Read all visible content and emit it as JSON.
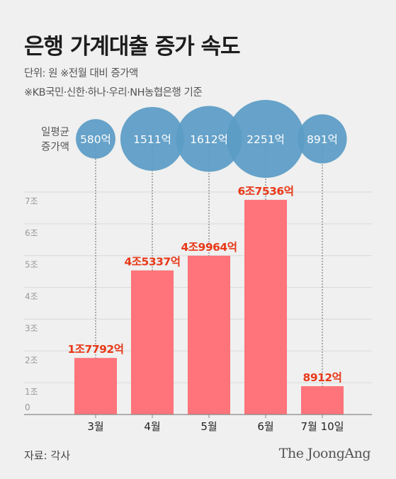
{
  "title": "은행 가계대출 증가 속도",
  "unit_note": "단위: 원  ※전월 대비 증가액",
  "basis_note": "※KB국민·신한·하나·우리·NH농협은행 기준",
  "source": "자료: 각사",
  "brand": "The JoongAng",
  "colors": {
    "bar": "#ff737a",
    "bar_label": "#e8391a",
    "bubble": "#5b9cc6",
    "grid": "#d9d9d9",
    "axis": "#888888"
  },
  "chart_data": {
    "type": "bar",
    "categories": [
      "3월",
      "4월",
      "5월",
      "6월",
      "7월 10일"
    ],
    "values": [
      17792,
      45337,
      49964,
      67536,
      8912
    ],
    "value_unit": "억",
    "data_labels": [
      "1조7792억",
      "4조5337억",
      "4조9964억",
      "6조7536억",
      "8912억"
    ],
    "ylim": [
      0,
      70000
    ],
    "yticks": [
      0,
      10000,
      20000,
      30000,
      40000,
      50000,
      60000,
      70000
    ],
    "ytick_labels": [
      "0",
      "1조",
      "2조",
      "3조",
      "4조",
      "5조",
      "6조",
      "7조"
    ],
    "grid": true,
    "bubbles": {
      "label_lines": [
        "일평균",
        "증가액"
      ],
      "values": [
        580,
        1511,
        1612,
        2251,
        891
      ],
      "labels": [
        "580억",
        "1511억",
        "1612억",
        "2251억",
        "891억"
      ]
    }
  }
}
